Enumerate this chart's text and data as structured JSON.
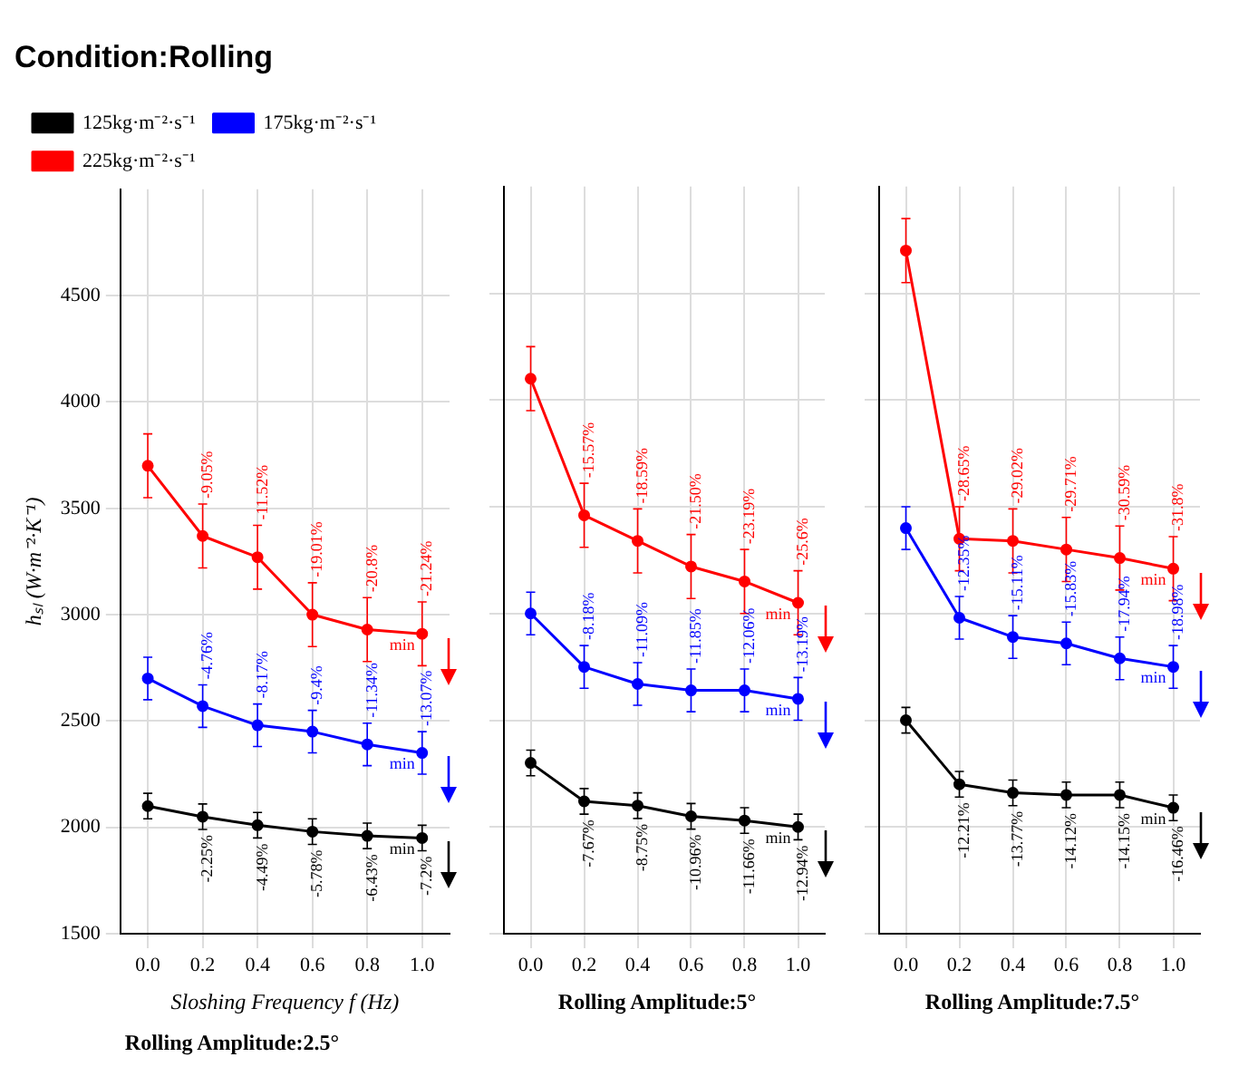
{
  "chart_data": [
    {
      "type": "line",
      "title": "Condition:Rolling",
      "subtitle": "Rolling Amplitude:2.5°",
      "xlabel": "Sloshing Frequency f (Hz)",
      "ylabel": "hₛₗ (W·m⁻²·K⁻¹)",
      "x": [
        0,
        0.2,
        0.4,
        0.6,
        0.8,
        1.0
      ],
      "xlim": [
        -0.1,
        1.1
      ],
      "xticks": [
        {
          "value": 0,
          "label": "0.0"
        },
        {
          "value": 0.2,
          "label": "0.2"
        },
        {
          "value": 0.4,
          "label": "0.4"
        },
        {
          "value": 0.6,
          "label": "0.6"
        },
        {
          "value": 0.8,
          "label": "0.8"
        },
        {
          "value": 1,
          "label": "1.0"
        }
      ],
      "ylim": [
        1500,
        5000
      ],
      "yticks": [
        1500,
        2000,
        2500,
        3000,
        3500,
        4000,
        4500
      ],
      "grid": true,
      "legend": "top left",
      "marker": "circle",
      "line_style": "solid",
      "series": [
        {
          "name": "125kg·m⁻²·s⁻¹",
          "color": "#000000",
          "values": [
            2100,
            2050,
            2010,
            1980,
            1960,
            1950
          ],
          "errors": [
            60,
            60,
            60,
            60,
            60,
            60
          ]
        },
        {
          "name": "175kg·m⁻²·s⁻¹",
          "color": "#0000ff",
          "values": [
            2700,
            2570,
            2480,
            2450,
            2390,
            2350
          ],
          "errors": [
            100,
            100,
            100,
            100,
            100,
            100
          ]
        },
        {
          "name": "225kg·m⁻²·s⁻¹",
          "color": "#ff0000",
          "values": [
            3700,
            3370,
            3270,
            3000,
            2930,
            2910
          ],
          "errors": [
            150,
            150,
            150,
            150,
            150,
            150
          ]
        }
      ],
      "annotations": [
        {
          "text": "-2.25%",
          "x": 0.2,
          "y": 2050
        },
        {
          "text": "-4.49%",
          "x": 0.4,
          "y": 2010
        },
        {
          "text": "-5.78%",
          "x": 0.6,
          "y": 1980
        },
        {
          "text": "-6.43%",
          "x": 0.8,
          "y": 1960
        },
        {
          "text": "-7.2%",
          "x": 1,
          "y": 1950
        },
        {
          "text": "min",
          "x": 1,
          "y": 1950
        },
        {
          "text": "-4.76%",
          "x": 0.2,
          "y": 2570
        },
        {
          "text": "-8.17%",
          "x": 0.4,
          "y": 2480
        },
        {
          "text": "-9.4%",
          "x": 0.6,
          "y": 2450
        },
        {
          "text": "-11.34%",
          "x": 0.8,
          "y": 2390
        },
        {
          "text": "-13.07%",
          "x": 1,
          "y": 2350
        },
        {
          "text": "min",
          "x": 1,
          "y": 2350
        },
        {
          "text": "-9.05%",
          "x": 0.2,
          "y": 3370
        },
        {
          "text": "-11.52%",
          "x": 0.4,
          "y": 3270
        },
        {
          "text": "-19.01%",
          "x": 0.6,
          "y": 3000
        },
        {
          "text": "-20.8%",
          "x": 0.8,
          "y": 2930
        },
        {
          "text": "-21.24%",
          "x": 1,
          "y": 2910
        },
        {
          "text": "min",
          "x": 1,
          "y": 2910
        }
      ]
    },
    {
      "type": "line",
      "subtitle": "Rolling Amplitude:5°",
      "x": [
        0,
        0.2,
        0.4,
        0.6,
        0.8,
        1.0
      ],
      "xlim": [
        -0.1,
        1.1
      ],
      "xticks": [
        {
          "value": 0,
          "label": "0.0"
        },
        {
          "value": 0.2,
          "label": "0.2"
        },
        {
          "value": 0.4,
          "label": "0.4"
        },
        {
          "value": 0.6,
          "label": "0.6"
        },
        {
          "value": 0.8,
          "label": "0.8"
        },
        {
          "value": 1,
          "label": "1.0"
        }
      ],
      "ylim": [
        1500,
        5000
      ],
      "yticks": [
        1500,
        2000,
        2500,
        3000,
        3500,
        4000,
        4500
      ],
      "grid": true,
      "marker": "circle",
      "line_style": "solid",
      "tick_labels": "x",
      "series": [
        {
          "color": "#000000",
          "values": [
            2300,
            2120,
            2100,
            2050,
            2030,
            2000
          ],
          "errors": [
            60,
            60,
            60,
            60,
            60,
            60
          ]
        },
        {
          "color": "#0000ff",
          "values": [
            3000,
            2750,
            2670,
            2640,
            2640,
            2600
          ],
          "errors": [
            100,
            100,
            100,
            100,
            100,
            100
          ]
        },
        {
          "color": "#ff0000",
          "values": [
            4100,
            3460,
            3340,
            3220,
            3150,
            3050
          ],
          "errors": [
            150,
            150,
            150,
            150,
            150,
            150
          ]
        }
      ],
      "annotations": [
        {
          "text": "-7.67%",
          "x": 0.2,
          "y": 2120
        },
        {
          "text": "-8.75%",
          "x": 0.4,
          "y": 2100
        },
        {
          "text": "-10.96%",
          "x": 0.6,
          "y": 2050
        },
        {
          "text": "-11.66%",
          "x": 0.8,
          "y": 2030
        },
        {
          "text": "-12.94%",
          "x": 1,
          "y": 2000
        },
        {
          "text": "min",
          "x": 1,
          "y": 2000
        },
        {
          "text": "-8.18%",
          "x": 0.2,
          "y": 2750
        },
        {
          "text": "-11.09%",
          "x": 0.4,
          "y": 2670
        },
        {
          "text": "-11.85%",
          "x": 0.6,
          "y": 2640
        },
        {
          "text": "-12.06%",
          "x": 0.8,
          "y": 2640
        },
        {
          "text": "-13.19%",
          "x": 1,
          "y": 2600
        },
        {
          "text": "min",
          "x": 1,
          "y": 2600
        },
        {
          "text": "-15.57%",
          "x": 0.2,
          "y": 3460
        },
        {
          "text": "-18.59%",
          "x": 0.4,
          "y": 3340
        },
        {
          "text": "-21.50%",
          "x": 0.6,
          "y": 3220
        },
        {
          "text": "-23.19%",
          "x": 0.8,
          "y": 3150
        },
        {
          "text": "-25.6%",
          "x": 1,
          "y": 3050
        },
        {
          "text": "min",
          "x": 1,
          "y": 3050
        }
      ]
    },
    {
      "type": "line",
      "subtitle": "Rolling Amplitude:7.5°",
      "x": [
        0,
        0.2,
        0.4,
        0.6,
        0.8,
        1.0
      ],
      "xlim": [
        -0.1,
        1.1
      ],
      "xticks": [
        {
          "value": 0,
          "label": "0.0"
        },
        {
          "value": 0.2,
          "label": "0.2"
        },
        {
          "value": 0.4,
          "label": "0.4"
        },
        {
          "value": 0.6,
          "label": "0.6"
        },
        {
          "value": 0.8,
          "label": "0.8"
        },
        {
          "value": 1,
          "label": "1.0"
        }
      ],
      "ylim": [
        1500,
        5000
      ],
      "yticks": [
        1500,
        2000,
        2500,
        3000,
        3500,
        4000,
        4500
      ],
      "grid": true,
      "marker": "circle",
      "line_style": "solid",
      "tick_labels": "x",
      "series": [
        {
          "color": "#000000",
          "values": [
            2500,
            2200,
            2160,
            2150,
            2150,
            2090
          ],
          "errors": [
            60,
            60,
            60,
            60,
            60,
            60
          ]
        },
        {
          "color": "#0000ff",
          "values": [
            3400,
            2980,
            2890,
            2860,
            2790,
            2750
          ],
          "errors": [
            100,
            100,
            100,
            100,
            100,
            100
          ]
        },
        {
          "color": "#ff0000",
          "values": [
            4700,
            3350,
            3340,
            3300,
            3260,
            3210
          ],
          "errors": [
            150,
            150,
            150,
            150,
            150,
            150
          ]
        }
      ],
      "annotations": [
        {
          "text": "-12.21%",
          "x": 0.2,
          "y": 2200
        },
        {
          "text": "-13.77%",
          "x": 0.4,
          "y": 2160
        },
        {
          "text": "-14.12%",
          "x": 0.6,
          "y": 2150
        },
        {
          "text": "-14.15%",
          "x": 0.8,
          "y": 2150
        },
        {
          "text": "-16.46%",
          "x": 1,
          "y": 2090
        },
        {
          "text": "min",
          "x": 1,
          "y": 2090
        },
        {
          "text": "-12.35%",
          "x": 0.2,
          "y": 2980
        },
        {
          "text": "-15.11%",
          "x": 0.4,
          "y": 2890
        },
        {
          "text": "-15.83%",
          "x": 0.6,
          "y": 2860
        },
        {
          "text": "-17.94%",
          "x": 0.8,
          "y": 2790
        },
        {
          "text": "-18.98%",
          "x": 1,
          "y": 2750
        },
        {
          "text": "min",
          "x": 1,
          "y": 2750
        },
        {
          "text": "-28.65%",
          "x": 0.2,
          "y": 3350
        },
        {
          "text": "-29.02%",
          "x": 0.4,
          "y": 3340
        },
        {
          "text": "-29.71%",
          "x": 0.6,
          "y": 3300
        },
        {
          "text": "-30.59%",
          "x": 0.8,
          "y": 3260
        },
        {
          "text": "-31.8%",
          "x": 1,
          "y": 3210
        },
        {
          "text": "min",
          "x": 1,
          "y": 3210
        }
      ]
    }
  ]
}
